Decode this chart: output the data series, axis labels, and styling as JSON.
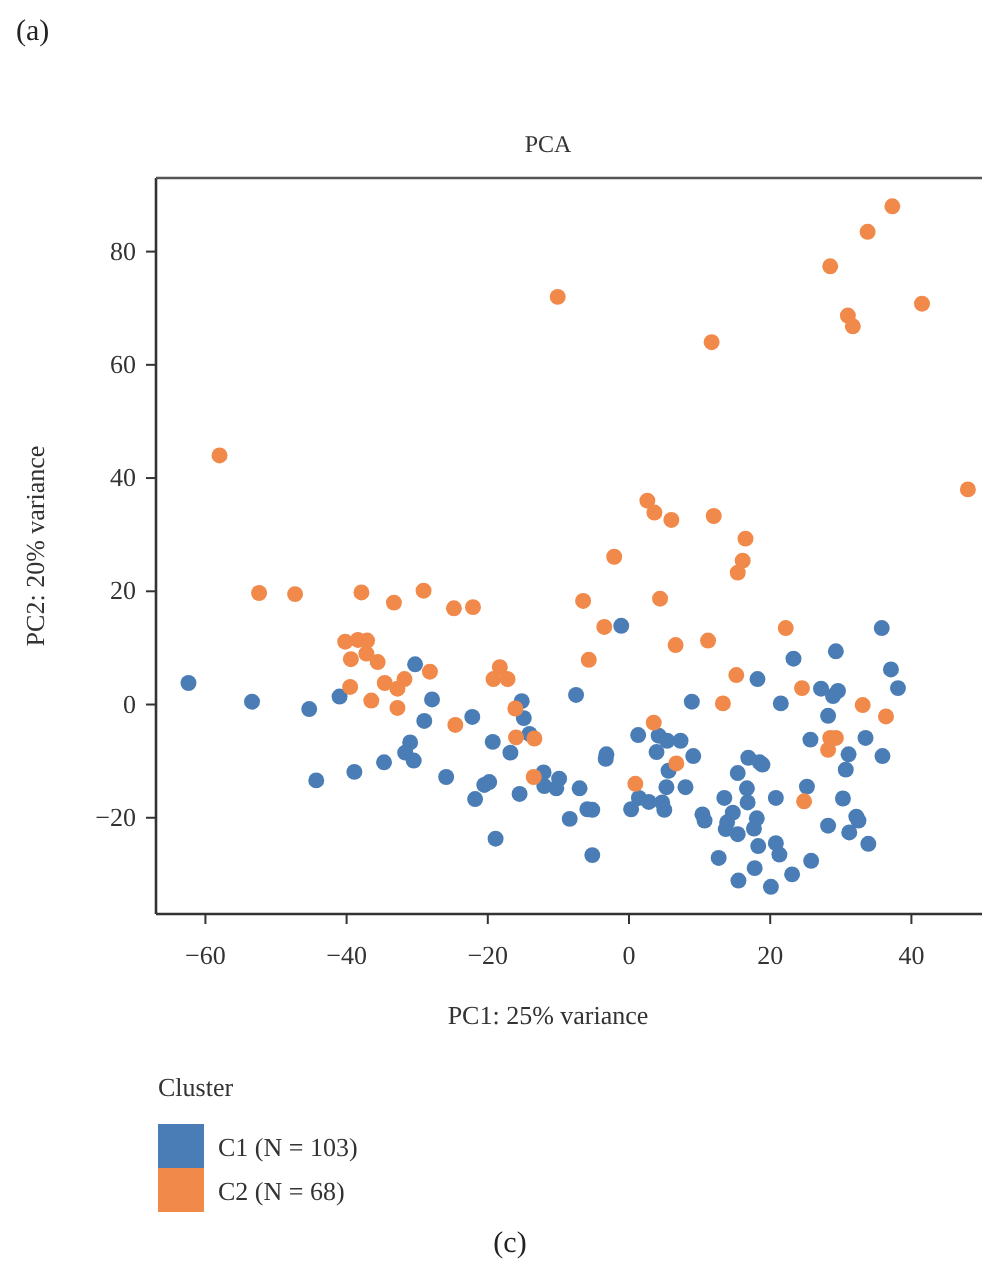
{
  "chart_data": {
    "type": "scatter",
    "title": "PCA",
    "xlabel": "PC1: 25% variance",
    "ylabel": "PC2: 20% variance",
    "legend_title": "Cluster",
    "legend": "bottom left",
    "grid": false,
    "marker": "circle",
    "xlim": [
      -67,
      50
    ],
    "ylim": [
      -37,
      93
    ],
    "xticks": [
      {
        "value": -60,
        "label": "−60"
      },
      {
        "value": -40,
        "label": "−40"
      },
      {
        "value": -20,
        "label": "−20"
      },
      0,
      20,
      40
    ],
    "yticks": [
      {
        "value": -20,
        "label": "−20"
      },
      0,
      20,
      40,
      60,
      80
    ],
    "annotations": [
      "(a)",
      "(c)"
    ],
    "series": [
      {
        "name": "C1 (N = 103)",
        "color": "#4a7db5",
        "x": [
          -62.4,
          -53.4,
          -45.3,
          -41,
          -30.3,
          -27.9,
          -29,
          -22.2,
          -31,
          -31.7,
          -30.5,
          -34.7,
          -38.9,
          -44.3,
          -25.9,
          -19.3,
          -16.8,
          -20.5,
          -19.8,
          -21.8,
          -15.5,
          -18.9,
          -15.2,
          -14.9,
          -14.1,
          -12.1,
          -12,
          -1.1,
          -7.5,
          8.9,
          18.2,
          23.3,
          21.5,
          29.3,
          35.8,
          37.1,
          38.1,
          27.2,
          29.6,
          28.9,
          28.2,
          25.7,
          33.5,
          31.1,
          35.9,
          30.7,
          30.3,
          32.2,
          32.5,
          31.2,
          33.9,
          28.2,
          25.8,
          23.1,
          20.1,
          17.8,
          15.5,
          12.7,
          21.3,
          20.8,
          18.3,
          15.4,
          13.7,
          13.9,
          14.7,
          13.5,
          10.4,
          10.7,
          17.7,
          18.1,
          16.8,
          16.7,
          20.8,
          15.4,
          16.9,
          18.5,
          18.9,
          25.2,
          9.1,
          8,
          5.6,
          5.3,
          3.9,
          4.2,
          5.4,
          7.3,
          1.3,
          1.4,
          0.3,
          2.8,
          4.7,
          5,
          -3.2,
          -3.3,
          -7,
          -5.9,
          -5.2,
          -8.4,
          -5.2,
          -9.9,
          -10.3
        ],
        "values": [
          3.8,
          0.5,
          -0.8,
          1.4,
          7.1,
          0.9,
          -2.9,
          -2.2,
          -6.7,
          -8.5,
          -9.9,
          -10.2,
          -11.9,
          -13.4,
          -12.8,
          -6.6,
          -8.5,
          -14.2,
          -13.7,
          -16.7,
          -15.8,
          -23.7,
          0.6,
          -2.4,
          -5.2,
          -12,
          -14.4,
          13.9,
          1.7,
          0.5,
          4.5,
          8.1,
          0.2,
          9.4,
          13.5,
          6.2,
          2.9,
          2.8,
          2.4,
          1.5,
          -2,
          -6.2,
          -5.9,
          -8.8,
          -9.1,
          -11.5,
          -16.6,
          -19.8,
          -20.5,
          -22.6,
          -24.6,
          -21.4,
          -27.6,
          -30,
          -32.2,
          -28.9,
          -31.1,
          -27.1,
          -26.5,
          -24.5,
          -25,
          -22.9,
          -22,
          -20.8,
          -19.1,
          -16.5,
          -19.4,
          -20.5,
          -21.9,
          -20.1,
          -17.3,
          -14.8,
          -16.5,
          -12.1,
          -9.4,
          -10.2,
          -10.6,
          -14.5,
          -9.1,
          -14.6,
          -11.7,
          -14.6,
          -8.4,
          -5.5,
          -6.4,
          -6.4,
          -5.4,
          -16.5,
          -18.5,
          -17.2,
          -17.3,
          -18.6,
          -8.8,
          -9.6,
          -14.8,
          -18.5,
          -18.6,
          -20.2,
          -26.6,
          -13.1,
          -14.8
        ]
      },
      {
        "name": "C2 (N = 68)",
        "color": "#f0894a",
        "x": [
          37.3,
          33.8,
          28.5,
          -10.1,
          41.5,
          31,
          31.7,
          11.7,
          2.6,
          3.6,
          6,
          12,
          16.5,
          -2.1,
          16.1,
          15.4,
          48,
          -58,
          -52.4,
          -47.3,
          -37.9,
          -33.3,
          -29.1,
          -24.8,
          -22.1,
          -40.2,
          -38.4,
          -37.1,
          -39.4,
          -37.2,
          -35.6,
          -28.2,
          -39.5,
          -34.6,
          -32.8,
          -31.8,
          -36.5,
          -32.8,
          -24.6,
          -18.3,
          -19.2,
          -17.2,
          -16.1,
          -16,
          -13.4,
          -13.5,
          -6.5,
          4.4,
          -3.5,
          -5.7,
          6.6,
          11.2,
          22.2,
          15.2,
          13.3,
          24.5,
          3.5,
          6.7,
          0.9,
          24.8,
          33.1,
          36.4,
          28.5,
          29.3,
          28.2
        ],
        "values": [
          88,
          83.5,
          77.4,
          72,
          70.8,
          68.7,
          66.8,
          64,
          36,
          33.9,
          32.6,
          33.3,
          29.3,
          26.1,
          25.4,
          23.3,
          38,
          44,
          19.7,
          19.5,
          19.8,
          18,
          20.1,
          17,
          17.2,
          11.1,
          11.4,
          11.3,
          8,
          9,
          7.5,
          5.8,
          3.1,
          3.8,
          2.8,
          4.5,
          0.7,
          -0.6,
          -3.6,
          6.6,
          4.5,
          4.5,
          -0.7,
          -5.8,
          -6,
          -12.8,
          18.3,
          18.7,
          13.7,
          7.9,
          10.5,
          11.3,
          13.5,
          5.2,
          0.2,
          2.9,
          -3.2,
          -10.4,
          -14,
          -17.1,
          -0.1,
          -2.1,
          -5.9,
          -5.9,
          -8
        ]
      }
    ]
  }
}
